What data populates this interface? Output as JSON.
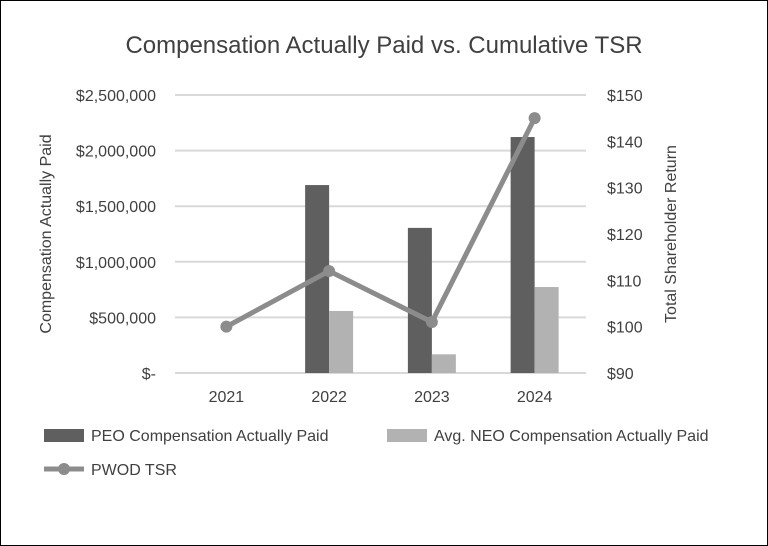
{
  "chart_data": {
    "type": "bar",
    "title": "Compensation Actually Paid vs. Cumulative TSR",
    "categories": [
      "2021",
      "2022",
      "2023",
      "2024"
    ],
    "ylabel": "Compensation Actually Paid",
    "y2label": "Total Shareholder Return",
    "ylim": [
      0,
      2500000
    ],
    "y2lim": [
      90,
      150
    ],
    "yticks": [
      "$-",
      "$500,000",
      "$1,000,000",
      "$1,500,000",
      "$2,000,000",
      "$2,500,000"
    ],
    "y2ticks": [
      "$90",
      "$100",
      "$110",
      "$120",
      "$130",
      "$140",
      "$150"
    ],
    "grid": true,
    "legend_position": "bottom",
    "series": [
      {
        "name": "PEO Compensation Actually Paid",
        "kind": "bar",
        "axis": "left",
        "color": "#5f5f5f",
        "values": [
          0,
          1690000,
          1305000,
          2122000
        ]
      },
      {
        "name": "Avg. NEO Compensation Actually Paid",
        "kind": "bar",
        "axis": "left",
        "color": "#b2b2b2",
        "values": [
          0,
          558000,
          168000,
          773000
        ]
      },
      {
        "name": "PWOD TSR",
        "kind": "line",
        "axis": "right",
        "color": "#8c8c8c",
        "values": [
          100,
          112,
          101,
          145
        ]
      }
    ]
  }
}
